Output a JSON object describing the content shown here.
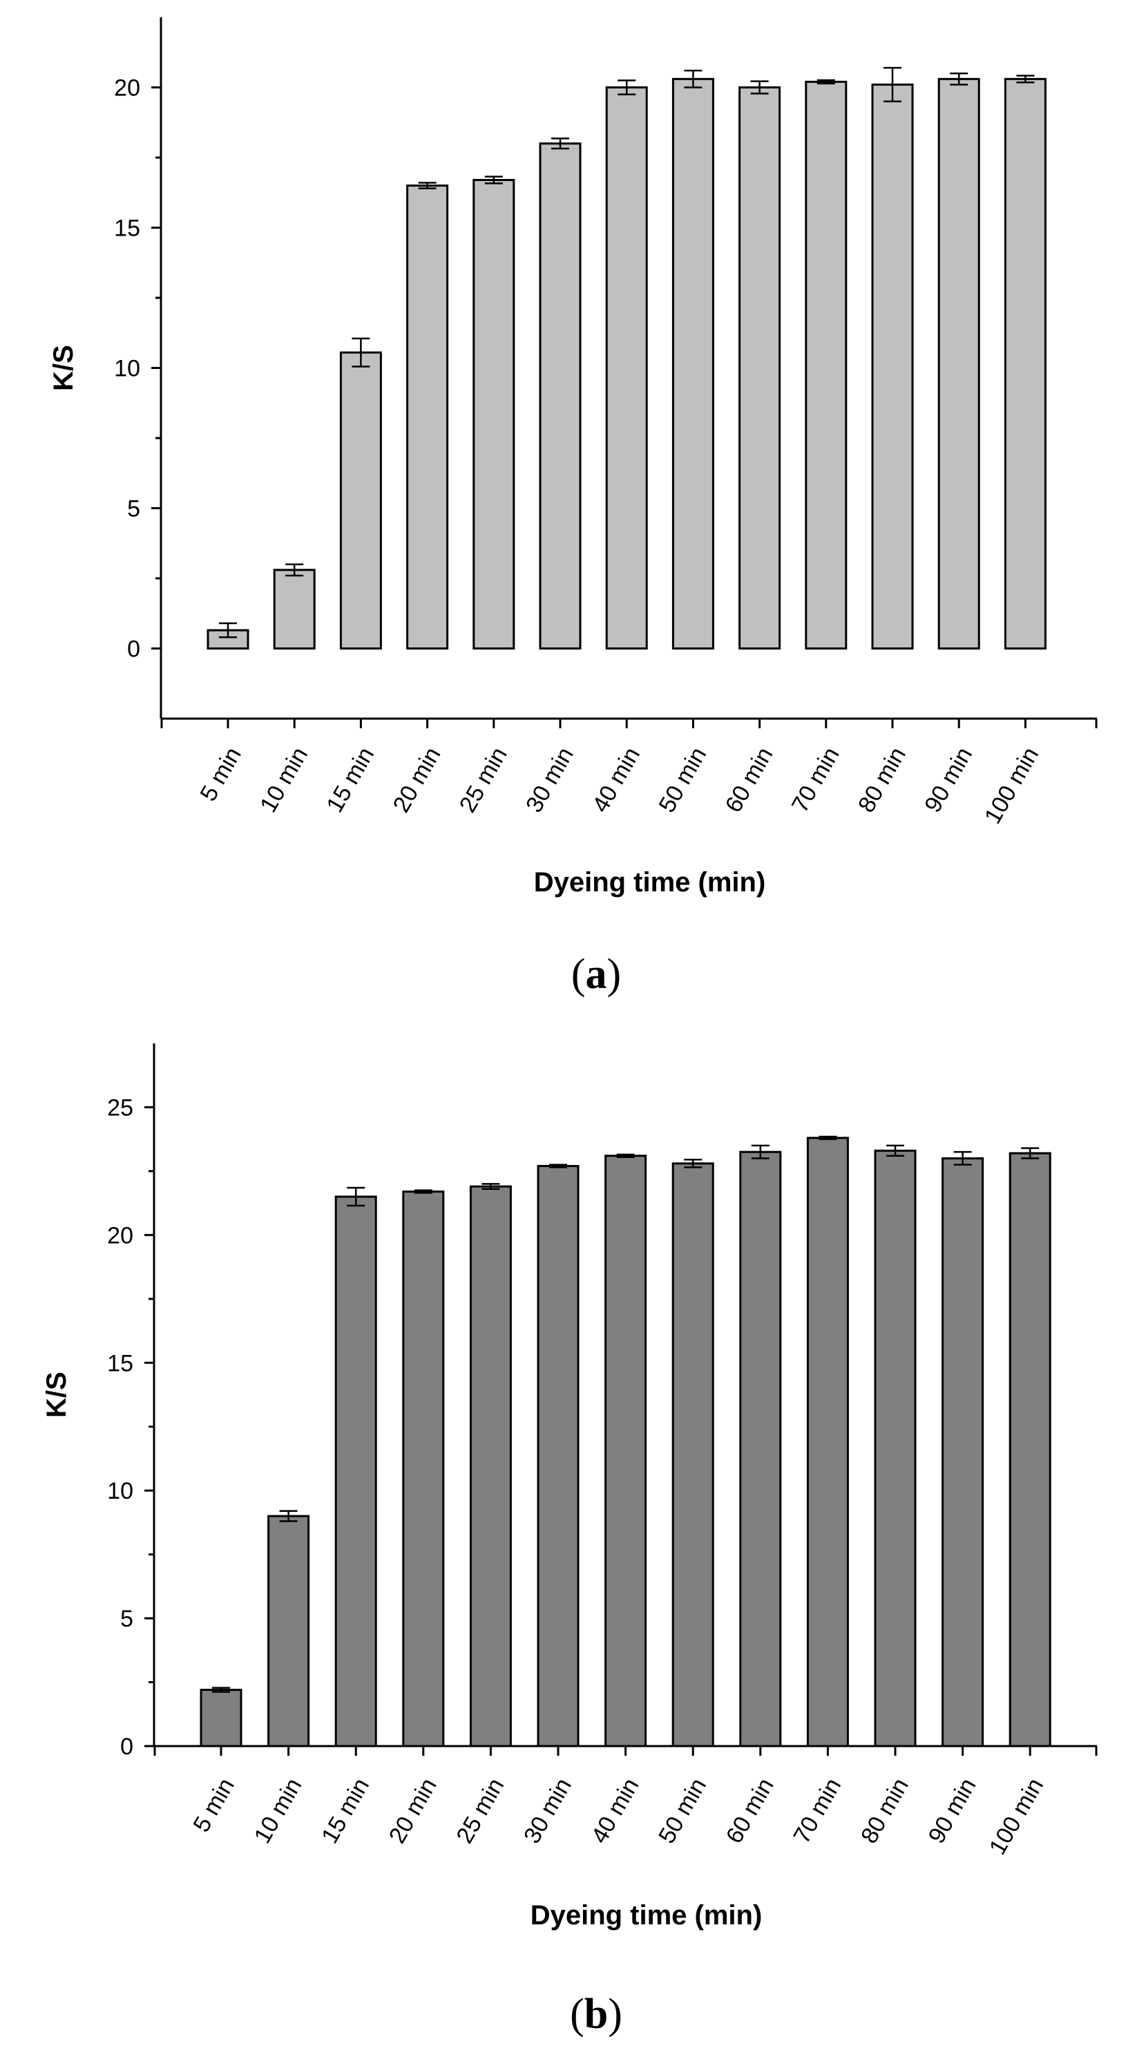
{
  "chart_data": [
    {
      "type": "bar",
      "panel_label": "a",
      "bar_color": "#c0c0c0",
      "categories": [
        "5 min",
        "10 min",
        "15 min",
        "20 min",
        "25 min",
        "30 min",
        "40 min",
        "50 min",
        "60 min",
        "70 min",
        "80 min",
        "90 min",
        "100 min"
      ],
      "values": [
        0.65,
        2.8,
        10.55,
        16.5,
        16.7,
        18.0,
        20.0,
        20.3,
        20.0,
        20.2,
        20.1,
        20.3,
        20.3
      ],
      "errors": [
        0.25,
        0.2,
        0.5,
        0.1,
        0.12,
        0.18,
        0.25,
        0.3,
        0.22,
        0.06,
        0.6,
        0.2,
        0.12
      ],
      "xlabel": "Dyeing time (min)",
      "ylabel": "K/S",
      "ylim": [
        -2.5,
        22.5
      ],
      "yticks": [
        0,
        5,
        10,
        15,
        20
      ],
      "ytick_labels": [
        "0",
        "5",
        "10",
        "15",
        "20"
      ]
    },
    {
      "type": "bar",
      "panel_label": "b",
      "bar_color": "#808080",
      "categories": [
        "5 min",
        "10 min",
        "15 min",
        "20 min",
        "25 min",
        "30 min",
        "40 min",
        "50 min",
        "60 min",
        "70 min",
        "80 min",
        "90 min",
        "100 min"
      ],
      "values": [
        2.2,
        9.0,
        21.5,
        21.7,
        21.9,
        22.7,
        23.1,
        22.8,
        23.25,
        23.8,
        23.3,
        23.0,
        23.2
      ],
      "errors": [
        0.08,
        0.2,
        0.35,
        0.05,
        0.1,
        0.05,
        0.05,
        0.15,
        0.25,
        0.05,
        0.2,
        0.25,
        0.2
      ],
      "xlabel": "Dyeing time (min)",
      "ylabel": "K/S",
      "ylim": [
        0,
        27.5
      ],
      "yticks": [
        0,
        5,
        10,
        15,
        20,
        25
      ],
      "ytick_labels": [
        "0",
        "5",
        "10",
        "15",
        "20",
        "25"
      ]
    }
  ]
}
